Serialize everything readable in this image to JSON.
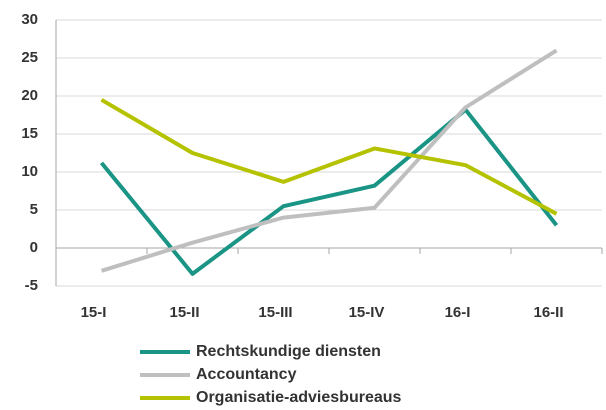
{
  "chart_data": {
    "type": "line",
    "categories": [
      "15-I",
      "15-II",
      "15-III",
      "15-IV",
      "16-I",
      "16-II"
    ],
    "series": [
      {
        "name": "Rechtskundige diensten",
        "color": "#1a9484",
        "values": [
          11.2,
          -3.4,
          5.5,
          8.2,
          18.2,
          3.0
        ]
      },
      {
        "name": "Accountancy",
        "color": "#bfbfbf",
        "values": [
          -3,
          0.7,
          4,
          5.3,
          18.5,
          26
        ]
      },
      {
        "name": "Organisatie-adviesbureaus",
        "color": "#b5c200",
        "values": [
          19.5,
          12.5,
          8.7,
          13.1,
          10.9,
          4.5
        ]
      }
    ],
    "ylim": [
      -5,
      30
    ],
    "yticks": [
      -5,
      0,
      5,
      10,
      15,
      20,
      25,
      30
    ],
    "grid": true,
    "legend": "bottom"
  }
}
